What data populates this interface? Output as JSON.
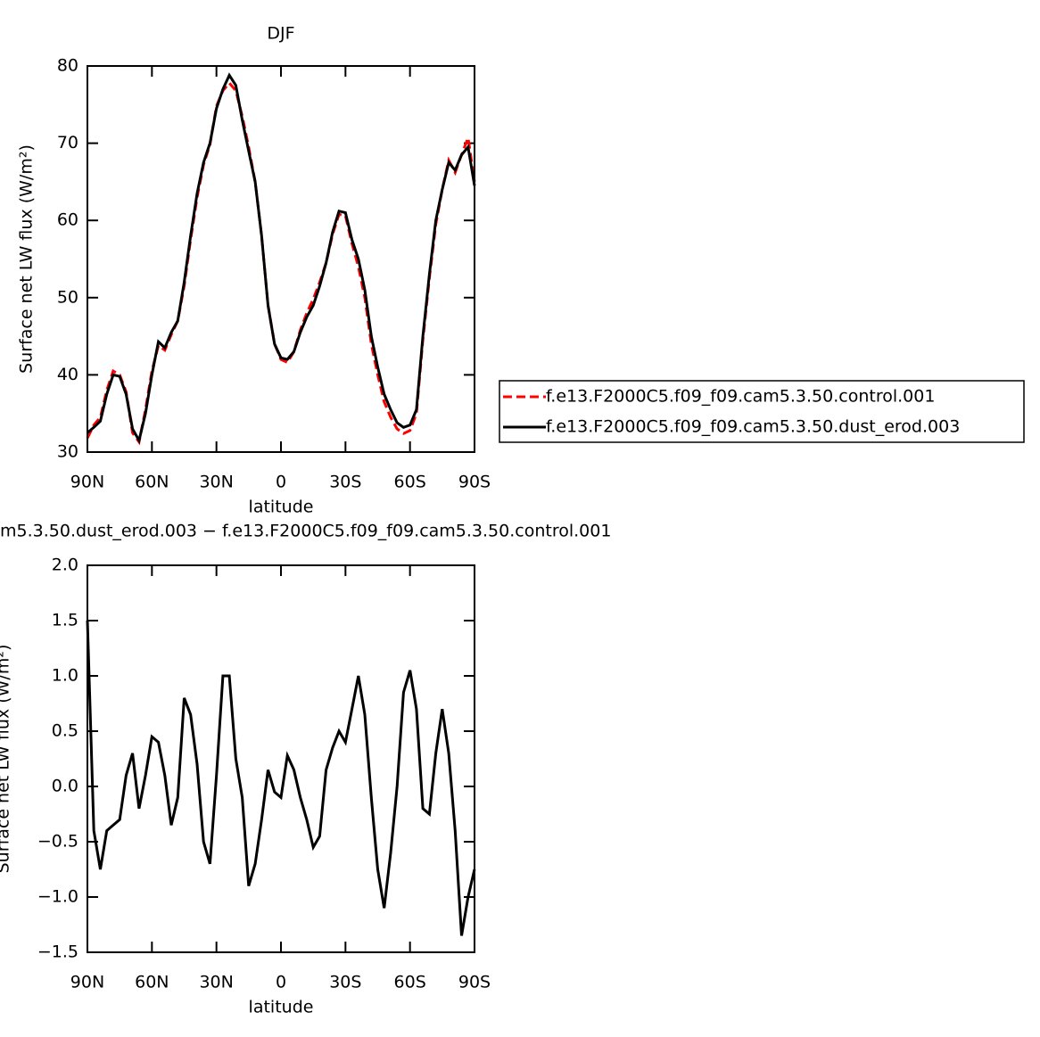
{
  "chart_data": [
    {
      "type": "line",
      "title": "DJF",
      "xlabel": "latitude",
      "ylabel": "Surface net LW flux (W/m²)",
      "x": [
        90,
        87,
        84,
        81,
        78,
        75,
        72,
        69,
        66,
        63,
        60,
        57,
        54,
        51,
        48,
        45,
        42,
        39,
        36,
        33,
        30,
        27,
        24,
        21,
        18,
        15,
        12,
        9,
        6,
        3,
        0,
        -3,
        -6,
        -9,
        -12,
        -15,
        -18,
        -21,
        -24,
        -27,
        -30,
        -33,
        -36,
        -39,
        -42,
        -45,
        -48,
        -51,
        -54,
        -57,
        -60,
        -63,
        -66,
        -69,
        -72,
        -75,
        -78,
        -81,
        -84,
        -87,
        -90
      ],
      "xlim": [
        90,
        -90
      ],
      "xticks": [
        {
          "value": 90,
          "label": "90N"
        },
        {
          "value": 60,
          "label": "60N"
        },
        {
          "value": 30,
          "label": "30N"
        },
        0,
        {
          "value": -30,
          "label": "30S"
        },
        {
          "value": -60,
          "label": "60S"
        },
        {
          "value": -90,
          "label": "90S"
        }
      ],
      "ylim": [
        30,
        80
      ],
      "yticks": [
        30,
        40,
        50,
        60,
        70,
        80
      ],
      "legend": "right",
      "series": [
        {
          "name": "f.e13.F2000C5.f09_f09.cam5.3.50.control.001",
          "color": "#ff0000",
          "dash": true,
          "values": [
            31.8,
            33.5,
            34.5,
            38,
            40.5,
            40,
            37.8,
            32.5,
            31.3,
            35.5,
            40.5,
            43.8,
            43.2,
            45.2,
            47,
            51.5,
            57.5,
            63,
            67.2,
            69.8,
            74.8,
            76.8,
            77.8,
            76.8,
            73.5,
            69.5,
            65,
            58,
            49,
            44,
            42,
            41.6,
            43,
            45.8,
            48,
            49.8,
            52,
            54.5,
            58.2,
            60.8,
            60.6,
            57,
            54,
            50,
            44,
            40,
            36.5,
            34.5,
            33,
            32.4,
            32.8,
            35,
            44.5,
            52.5,
            59.5,
            64,
            67.8,
            66.2,
            68.5,
            70.7,
            65
          ]
        },
        {
          "name": "f.e13.F2000C5.f09_f09.cam5.3.50.dust_erod.003",
          "color": "#000000",
          "dash": false,
          "values": [
            32.5,
            33.2,
            34,
            37.5,
            40,
            39.8,
            37.5,
            33,
            31.5,
            35,
            40,
            44.3,
            43.5,
            45.5,
            47,
            52,
            58,
            63.5,
            67.5,
            70,
            74.5,
            77,
            78.8,
            77.5,
            73,
            69,
            65,
            58,
            49,
            44,
            42.2,
            42,
            43,
            45.5,
            47.5,
            49,
            51.5,
            54.5,
            58.5,
            61.2,
            61,
            57.5,
            55,
            51,
            45,
            41,
            37.5,
            35.5,
            33.8,
            33.2,
            33.5,
            35.5,
            45,
            53,
            60,
            64,
            67.5,
            66.5,
            68.5,
            69.5,
            64.5
          ]
        }
      ]
    },
    {
      "type": "line",
      "title": "m5.3.50.dust_erod.003 − f.e13.F2000C5.f09_f09.cam5.3.50.control.001",
      "xlabel": "latitude",
      "ylabel": "Surface net LW flux (W/m²)",
      "x": [
        90,
        87,
        84,
        81,
        78,
        75,
        72,
        69,
        66,
        63,
        60,
        57,
        54,
        51,
        48,
        45,
        42,
        39,
        36,
        33,
        30,
        27,
        24,
        21,
        18,
        15,
        12,
        9,
        6,
        3,
        0,
        -3,
        -6,
        -9,
        -12,
        -15,
        -18,
        -21,
        -24,
        -27,
        -30,
        -33,
        -36,
        -39,
        -42,
        -45,
        -48,
        -51,
        -54,
        -57,
        -60,
        -63,
        -66,
        -69,
        -72,
        -75,
        -78,
        -81,
        -84,
        -87,
        -90
      ],
      "xlim": [
        90,
        -90
      ],
      "xticks": [
        {
          "value": 90,
          "label": "90N"
        },
        {
          "value": 60,
          "label": "60N"
        },
        {
          "value": 30,
          "label": "30N"
        },
        0,
        {
          "value": -30,
          "label": "30S"
        },
        {
          "value": -60,
          "label": "60S"
        },
        {
          "value": -90,
          "label": "90S"
        }
      ],
      "ylim": [
        -1.5,
        2
      ],
      "yticks": [
        {
          "value": -1.5,
          "label": "−1.5"
        },
        {
          "value": -1,
          "label": "−1.0"
        },
        {
          "value": -0.5,
          "label": "−0.5"
        },
        {
          "value": 0,
          "label": "0.0"
        },
        0.5,
        {
          "value": 1,
          "label": "1.0"
        },
        1.5,
        {
          "value": 2,
          "label": "2.0"
        }
      ],
      "series": [
        {
          "color": "#000000",
          "values": [
            1.5,
            -0.4,
            -0.75,
            -0.4,
            -0.35,
            -0.3,
            0.1,
            0.3,
            -0.2,
            0.1,
            0.45,
            0.4,
            0.1,
            -0.35,
            -0.1,
            0.8,
            0.65,
            0.2,
            -0.5,
            -0.7,
            0.1,
            1.0,
            1.0,
            0.25,
            -0.1,
            -0.9,
            -0.7,
            -0.3,
            0.15,
            -0.05,
            -0.1,
            0.28,
            0.15,
            -0.1,
            -0.3,
            -0.55,
            -0.45,
            0.15,
            0.35,
            0.5,
            0.4,
            0.7,
            1.0,
            0.65,
            -0.1,
            -0.75,
            -1.1,
            -0.6,
            0.0,
            0.85,
            1.05,
            0.7,
            -0.2,
            -0.25,
            0.3,
            0.7,
            0.3,
            -0.4,
            -1.35,
            -1.0,
            -0.75
          ]
        }
      ]
    }
  ]
}
